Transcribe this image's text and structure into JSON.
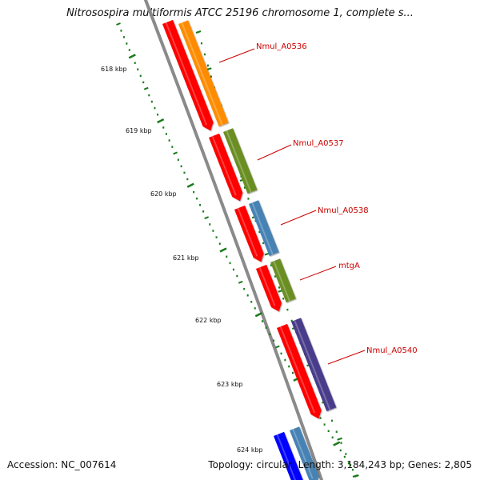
{
  "title": "Nitrosospira multiformis ATCC 25196 chromosome 1, complete s...",
  "footer": {
    "accession": "Accession: NC_007614",
    "summary": "Topology: circular; Length: 3,184,243 bp; Genes: 2,805"
  },
  "colors": {
    "backbone": "#8a8a8a",
    "tick": "#1a7a1a",
    "label_line": "#cc0000",
    "label_text": "#cc0000"
  },
  "axis": {
    "unit": "kbp",
    "major_ticks": [
      "618 kbp",
      "619 kbp",
      "620 kbp",
      "621 kbp",
      "622 kbp",
      "623 kbp",
      "624 kbp"
    ]
  },
  "genes": [
    {
      "label": "Nmul_A0536",
      "cds_color": "#ff0000",
      "gene_color": "#ff8c00"
    },
    {
      "label": "Nmul_A0537",
      "cds_color": "#ff0000",
      "gene_color": "#6b8e23"
    },
    {
      "label": "Nmul_A0538",
      "cds_color": "#ff0000",
      "gene_color": "#4682b4"
    },
    {
      "label": "mtgA",
      "cds_color": "#ff0000",
      "gene_color": "#6b8e23"
    },
    {
      "label": "Nmul_A0540",
      "cds_color": "#ff0000",
      "gene_color": "#483d8b"
    },
    {
      "label": "",
      "cds_color": "#0000ff",
      "gene_color": "#4682b4"
    }
  ]
}
